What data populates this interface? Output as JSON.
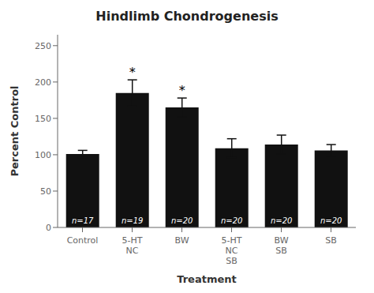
{
  "chart_data": {
    "type": "bar",
    "title": "Hindlimb Chondrogenesis",
    "xlabel": "Treatment",
    "ylabel": "Percent Control",
    "categories": [
      "Control",
      "5-HT\nNC",
      "BW",
      "5-HT\nNC\nSB",
      "BW\nSB",
      "SB"
    ],
    "values": [
      101,
      185,
      165,
      109,
      114,
      106
    ],
    "errors": [
      5,
      18,
      13,
      13,
      13,
      8
    ],
    "n_labels": [
      "n=17",
      "n=19",
      "n=20",
      "n=20",
      "n=20",
      "n=20"
    ],
    "annotations": [
      {
        "category": "5-HT\nNC",
        "text": "*"
      },
      {
        "category": "BW",
        "text": "*"
      }
    ],
    "color": "#111111",
    "ylim": [
      0,
      265
    ],
    "yticks": [
      0,
      50,
      100,
      150,
      200,
      250
    ],
    "grid": false
  }
}
